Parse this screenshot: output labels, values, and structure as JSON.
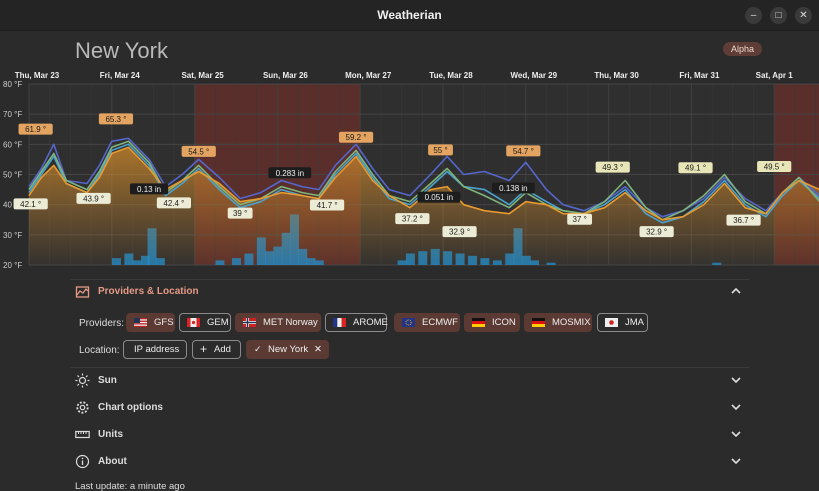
{
  "window": {
    "title": "Weatherian",
    "minimize_glyph": "–",
    "maximize_glyph": "□",
    "close_glyph": "✕"
  },
  "header": {
    "city": "New York",
    "badge": "Alpha"
  },
  "chart_data": {
    "type": "line",
    "x_tick_labels": [
      "Thu, Mar 23",
      "Fri, Mar 24",
      "Sat, Mar 25",
      "Sun, Mar 26",
      "Mon, Mar 27",
      "Tue, Mar 28",
      "Wed, Mar 29",
      "Thu, Mar 30",
      "Fri, Mar 31",
      "Sat, Apr 1"
    ],
    "y_tick_labels": [
      "80 °F",
      "70 °F",
      "60 °F",
      "50 °F",
      "40 °F",
      "30 °F",
      "20 °F"
    ],
    "ylim": [
      20,
      80
    ],
    "x_range_days": [
      0,
      9.55
    ],
    "weekend_day_ranges": [
      [
        2,
        4
      ],
      [
        9,
        9.55
      ]
    ],
    "grid": true,
    "series": [
      {
        "color": "#5566cc",
        "points": [
          [
            0,
            46
          ],
          [
            0.15,
            52
          ],
          [
            0.3,
            60
          ],
          [
            0.45,
            48
          ],
          [
            0.7,
            47
          ],
          [
            0.85,
            53
          ],
          [
            1.0,
            61
          ],
          [
            1.2,
            62
          ],
          [
            1.45,
            55
          ],
          [
            1.65,
            46
          ],
          [
            1.85,
            50
          ],
          [
            2.05,
            55
          ],
          [
            2.3,
            49
          ],
          [
            2.55,
            42
          ],
          [
            2.8,
            44
          ],
          [
            3.05,
            48
          ],
          [
            3.3,
            46
          ],
          [
            3.5,
            45
          ],
          [
            3.7,
            53
          ],
          [
            3.95,
            60
          ],
          [
            4.15,
            52
          ],
          [
            4.35,
            45
          ],
          [
            4.6,
            43
          ],
          [
            4.85,
            50
          ],
          [
            5.05,
            56
          ],
          [
            5.25,
            50
          ],
          [
            5.5,
            51
          ],
          [
            5.8,
            48
          ],
          [
            6.0,
            54
          ],
          [
            6.25,
            45
          ],
          [
            6.45,
            40
          ],
          [
            6.7,
            38
          ],
          [
            6.95,
            41
          ],
          [
            7.2,
            46
          ],
          [
            7.45,
            39
          ],
          [
            7.65,
            36
          ],
          [
            7.9,
            38
          ],
          [
            8.15,
            42
          ],
          [
            8.4,
            49
          ],
          [
            8.65,
            42
          ],
          [
            8.9,
            38
          ],
          [
            9.1,
            44
          ],
          [
            9.3,
            49
          ],
          [
            9.55,
            43
          ]
        ]
      },
      {
        "color": "#4aa2cf",
        "points": [
          [
            0,
            44
          ],
          [
            0.15,
            50
          ],
          [
            0.3,
            56
          ],
          [
            0.45,
            47
          ],
          [
            0.7,
            44
          ],
          [
            0.85,
            50
          ],
          [
            1.0,
            58
          ],
          [
            1.2,
            60
          ],
          [
            1.45,
            53
          ],
          [
            1.65,
            43
          ],
          [
            1.85,
            47
          ],
          [
            2.05,
            52
          ],
          [
            2.3,
            45
          ],
          [
            2.55,
            39
          ],
          [
            2.8,
            41
          ],
          [
            3.05,
            45
          ],
          [
            3.3,
            43
          ],
          [
            3.5,
            42
          ],
          [
            3.7,
            50
          ],
          [
            3.95,
            57
          ],
          [
            4.15,
            49
          ],
          [
            4.35,
            42
          ],
          [
            4.6,
            40
          ],
          [
            4.85,
            46
          ],
          [
            5.05,
            51
          ],
          [
            5.25,
            46
          ],
          [
            5.5,
            45
          ],
          [
            5.8,
            40
          ],
          [
            6.0,
            45
          ],
          [
            6.25,
            41
          ],
          [
            6.45,
            38
          ],
          [
            6.7,
            37
          ],
          [
            6.95,
            40
          ],
          [
            7.2,
            45
          ],
          [
            7.45,
            37
          ],
          [
            7.65,
            34
          ],
          [
            7.9,
            36
          ],
          [
            8.15,
            41
          ],
          [
            8.4,
            48
          ],
          [
            8.65,
            40
          ],
          [
            8.9,
            36
          ],
          [
            9.1,
            43
          ],
          [
            9.3,
            48
          ],
          [
            9.55,
            42
          ]
        ]
      },
      {
        "color": "#7fb57a",
        "points": [
          [
            0,
            45
          ],
          [
            0.15,
            51
          ],
          [
            0.3,
            57
          ],
          [
            0.45,
            48
          ],
          [
            0.7,
            45
          ],
          [
            0.85,
            51
          ],
          [
            1.0,
            59
          ],
          [
            1.2,
            61
          ],
          [
            1.45,
            54
          ],
          [
            1.65,
            44
          ],
          [
            1.85,
            48
          ],
          [
            2.05,
            53
          ],
          [
            2.3,
            46
          ],
          [
            2.55,
            40
          ],
          [
            2.8,
            42
          ],
          [
            3.05,
            46
          ],
          [
            3.3,
            44
          ],
          [
            3.5,
            43
          ],
          [
            3.7,
            51
          ],
          [
            3.95,
            58
          ],
          [
            4.15,
            50
          ],
          [
            4.35,
            43
          ],
          [
            4.6,
            41
          ],
          [
            4.85,
            47
          ],
          [
            5.05,
            52
          ],
          [
            5.25,
            46
          ],
          [
            5.5,
            43
          ],
          [
            5.8,
            39
          ],
          [
            6.0,
            44
          ],
          [
            6.25,
            40
          ],
          [
            6.45,
            38
          ],
          [
            6.7,
            37
          ],
          [
            6.95,
            41
          ],
          [
            7.2,
            48
          ],
          [
            7.45,
            39
          ],
          [
            7.65,
            35
          ],
          [
            7.9,
            38
          ],
          [
            8.15,
            43
          ],
          [
            8.4,
            50
          ],
          [
            8.65,
            41
          ],
          [
            8.9,
            37
          ],
          [
            9.1,
            44
          ],
          [
            9.3,
            49
          ],
          [
            9.55,
            41
          ]
        ]
      },
      {
        "color": "#e89a2e",
        "points": [
          [
            0,
            43
          ],
          [
            0.15,
            49
          ],
          [
            0.3,
            53
          ],
          [
            0.45,
            47
          ],
          [
            0.7,
            44
          ],
          [
            0.85,
            49
          ],
          [
            1.0,
            57
          ],
          [
            1.2,
            59
          ],
          [
            1.45,
            52
          ],
          [
            1.65,
            45
          ],
          [
            1.85,
            48
          ],
          [
            2.05,
            51
          ],
          [
            2.3,
            47
          ],
          [
            2.55,
            41
          ],
          [
            2.8,
            42
          ],
          [
            3.05,
            44
          ],
          [
            3.3,
            43
          ],
          [
            3.5,
            42
          ],
          [
            3.7,
            49
          ],
          [
            3.95,
            56
          ],
          [
            4.15,
            48
          ],
          [
            4.35,
            43
          ],
          [
            4.6,
            39
          ],
          [
            4.85,
            45
          ],
          [
            5.05,
            46
          ],
          [
            5.25,
            40
          ],
          [
            5.5,
            38
          ],
          [
            5.8,
            37
          ],
          [
            6.0,
            41
          ],
          [
            6.25,
            40
          ],
          [
            6.45,
            37
          ],
          [
            6.7,
            37
          ],
          [
            6.95,
            39
          ],
          [
            7.2,
            44
          ],
          [
            7.45,
            38
          ],
          [
            7.65,
            35
          ],
          [
            7.9,
            36
          ],
          [
            8.15,
            40
          ],
          [
            8.4,
            47
          ],
          [
            8.65,
            39
          ],
          [
            8.9,
            37
          ],
          [
            9.1,
            44
          ],
          [
            9.3,
            48
          ],
          [
            9.55,
            45
          ]
        ]
      }
    ],
    "temperature_labels": [
      {
        "day": 0.08,
        "value": 61.9,
        "text": "61.9 °",
        "style": "hi"
      },
      {
        "day": 1.05,
        "value": 65.3,
        "text": "65.3 °",
        "style": "hi"
      },
      {
        "day": 2.05,
        "value": 54.5,
        "text": "54.5 °",
        "style": "hi"
      },
      {
        "day": 3.95,
        "value": 59.2,
        "text": "59.2 °",
        "style": "hi"
      },
      {
        "day": 4.97,
        "value": 55,
        "text": "55 °",
        "style": "hi"
      },
      {
        "day": 5.97,
        "value": 54.7,
        "text": "54.7 °",
        "style": "hi"
      },
      {
        "day": 7.05,
        "value": 49.3,
        "text": "49.3 °",
        "style": "hi2"
      },
      {
        "day": 8.05,
        "value": 49.1,
        "text": "49.1 °",
        "style": "hi2"
      },
      {
        "day": 9.0,
        "value": 49.5,
        "text": "49.5 °",
        "style": "hi2"
      },
      {
        "day": 0.02,
        "value": 42.1,
        "text": "42.1 °",
        "style": "lo"
      },
      {
        "day": 0.78,
        "value": 43.9,
        "text": "43.9 °",
        "style": "lo"
      },
      {
        "day": 1.75,
        "value": 42.4,
        "text": "42.4 °",
        "style": "lo"
      },
      {
        "day": 2.55,
        "value": 39,
        "text": "39 °",
        "style": "lo"
      },
      {
        "day": 3.6,
        "value": 41.7,
        "text": "41.7 °",
        "style": "lo"
      },
      {
        "day": 4.63,
        "value": 37.2,
        "text": "37.2 °",
        "style": "lo"
      },
      {
        "day": 5.2,
        "value": 32.9,
        "text": "32.9 °",
        "style": "lo"
      },
      {
        "day": 6.65,
        "value": 37,
        "text": "37 °",
        "style": "lo"
      },
      {
        "day": 7.58,
        "value": 32.9,
        "text": "32.9 °",
        "style": "lo"
      },
      {
        "day": 8.63,
        "value": 36.7,
        "text": "36.7 °",
        "style": "lo"
      }
    ],
    "precip_labels": [
      {
        "day": 1.45,
        "value": 0.13,
        "text": "0.13 in"
      },
      {
        "day": 3.15,
        "value": 0.283,
        "text": "0.283 in"
      },
      {
        "day": 4.95,
        "value": 0.051,
        "text": "0.051 in"
      },
      {
        "day": 5.85,
        "value": 0.138,
        "text": "0.138 in"
      }
    ],
    "precip_bars": [
      [
        1.05,
        3
      ],
      [
        1.2,
        5
      ],
      [
        1.3,
        2
      ],
      [
        1.4,
        4
      ],
      [
        1.48,
        16
      ],
      [
        1.58,
        3
      ],
      [
        2.3,
        2
      ],
      [
        2.5,
        3
      ],
      [
        2.65,
        5
      ],
      [
        2.8,
        12
      ],
      [
        2.9,
        6
      ],
      [
        3.0,
        8
      ],
      [
        3.1,
        14
      ],
      [
        3.2,
        22
      ],
      [
        3.3,
        7
      ],
      [
        3.4,
        3
      ],
      [
        3.5,
        2
      ],
      [
        4.5,
        2
      ],
      [
        4.6,
        5
      ],
      [
        4.75,
        6
      ],
      [
        4.9,
        7
      ],
      [
        5.05,
        6
      ],
      [
        5.2,
        5
      ],
      [
        5.35,
        4
      ],
      [
        5.5,
        3
      ],
      [
        5.65,
        2
      ],
      [
        5.8,
        5
      ],
      [
        5.9,
        16
      ],
      [
        6.0,
        4
      ],
      [
        6.1,
        2
      ],
      [
        6.3,
        1
      ],
      [
        8.3,
        1
      ]
    ]
  },
  "providers_section": {
    "title": "Providers & Location",
    "providers_label": "Providers:",
    "providers": [
      {
        "name": "GFS",
        "flag": "us-flag-icon",
        "active": true
      },
      {
        "name": "GEM",
        "flag": "canada-flag-icon",
        "active": false
      },
      {
        "name": "MET Norway",
        "flag": "norway-flag-icon",
        "active": true
      },
      {
        "name": "AROME",
        "flag": "france-flag-icon",
        "active": false
      },
      {
        "name": "ECMWF",
        "flag": "eu-flag-icon",
        "active": true
      },
      {
        "name": "ICON",
        "flag": "germany-flag-icon",
        "active": true
      },
      {
        "name": "MOSMIX",
        "flag": "germany-flag-icon",
        "active": true
      },
      {
        "name": "JMA",
        "flag": "japan-flag-icon",
        "active": false
      }
    ],
    "location_label": "Location:",
    "ip_button": "IP address",
    "add_button": "Add",
    "add_glyph": "+",
    "location_chip": "New York",
    "check_glyph": "✓",
    "remove_glyph": "✕"
  },
  "sections": {
    "sun": "Sun",
    "chart_options": "Chart options",
    "units": "Units",
    "about": "About"
  },
  "footer": {
    "last_update": "Last update: a minute ago"
  }
}
